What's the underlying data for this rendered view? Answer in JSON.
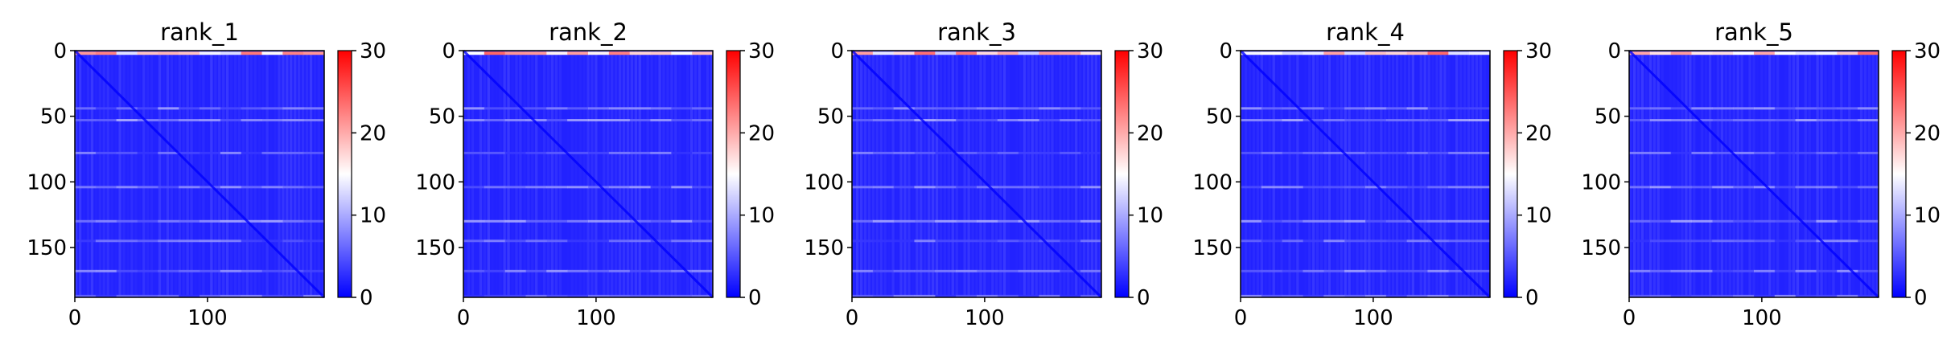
{
  "chart_data": [
    {
      "type": "heatmap",
      "title": "rank_1",
      "x_ticks": [
        0,
        100
      ],
      "y_ticks": [
        0,
        50,
        100,
        150
      ],
      "xlim": [
        0,
        188
      ],
      "ylim": [
        188,
        0
      ],
      "matrix_size": 188,
      "colorbar": {
        "ticks": [
          0,
          10,
          20,
          30
        ],
        "range": [
          0,
          30
        ],
        "cmap": "bwr"
      },
      "horizontal_bands": [
        2,
        44,
        53,
        78,
        104,
        130,
        145,
        168,
        187
      ],
      "diagonal": true
    },
    {
      "type": "heatmap",
      "title": "rank_2",
      "x_ticks": [
        0,
        100
      ],
      "y_ticks": [
        0,
        50,
        100,
        150
      ],
      "xlim": [
        0,
        188
      ],
      "ylim": [
        188,
        0
      ],
      "matrix_size": 188,
      "colorbar": {
        "ticks": [
          0,
          10,
          20,
          30
        ],
        "range": [
          0,
          30
        ],
        "cmap": "bwr"
      },
      "horizontal_bands": [
        2,
        44,
        53,
        78,
        104,
        130,
        145,
        168,
        187
      ],
      "diagonal": true
    },
    {
      "type": "heatmap",
      "title": "rank_3",
      "x_ticks": [
        0,
        100
      ],
      "y_ticks": [
        0,
        50,
        100,
        150
      ],
      "xlim": [
        0,
        188
      ],
      "ylim": [
        188,
        0
      ],
      "matrix_size": 188,
      "colorbar": {
        "ticks": [
          0,
          10,
          20,
          30
        ],
        "range": [
          0,
          30
        ],
        "cmap": "bwr"
      },
      "horizontal_bands": [
        2,
        44,
        53,
        78,
        104,
        130,
        145,
        168,
        187
      ],
      "diagonal": true
    },
    {
      "type": "heatmap",
      "title": "rank_4",
      "x_ticks": [
        0,
        100
      ],
      "y_ticks": [
        0,
        50,
        100,
        150
      ],
      "xlim": [
        0,
        188
      ],
      "ylim": [
        188,
        0
      ],
      "matrix_size": 188,
      "colorbar": {
        "ticks": [
          0,
          10,
          20,
          30
        ],
        "range": [
          0,
          30
        ],
        "cmap": "bwr"
      },
      "horizontal_bands": [
        2,
        44,
        53,
        78,
        104,
        130,
        145,
        168,
        187
      ],
      "diagonal": true
    },
    {
      "type": "heatmap",
      "title": "rank_5",
      "x_ticks": [
        0,
        100
      ],
      "y_ticks": [
        0,
        50,
        100,
        150
      ],
      "xlim": [
        0,
        188
      ],
      "ylim": [
        188,
        0
      ],
      "matrix_size": 188,
      "colorbar": {
        "ticks": [
          0,
          10,
          20,
          30
        ],
        "range": [
          0,
          30
        ],
        "cmap": "bwr"
      },
      "horizontal_bands": [
        2,
        44,
        53,
        78,
        104,
        130,
        145,
        168,
        187
      ],
      "diagonal": true
    }
  ],
  "colors": {
    "low": "#0000ff",
    "mid": "#ffffff",
    "high": "#ff0000",
    "axis": "#000000"
  }
}
